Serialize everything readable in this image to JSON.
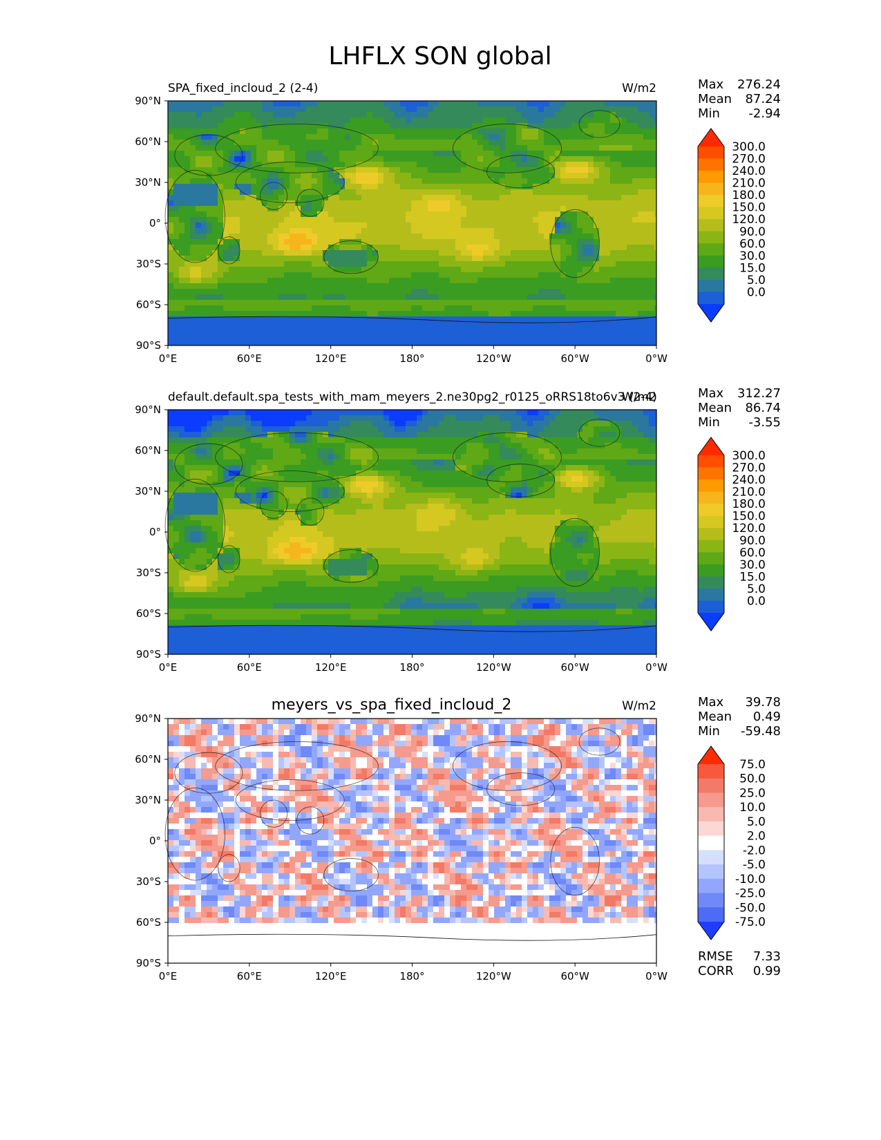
{
  "page_title": "LHFLX SON global",
  "chart_data": [
    {
      "type": "heatmap",
      "title": "SPA_fixed_incloud_2 (2-4)",
      "units": "W/m2",
      "x_ticks": [
        "0°E",
        "60°E",
        "120°E",
        "180°",
        "120°W",
        "60°W",
        "0°W"
      ],
      "y_ticks": [
        "90°N",
        "60°N",
        "30°N",
        "0°",
        "30°S",
        "60°S",
        "90°S"
      ],
      "xlim": [
        0,
        360
      ],
      "ylim": [
        -90,
        90
      ],
      "stats": [
        {
          "label": "Max",
          "value": "276.24"
        },
        {
          "label": "Mean",
          "value": "87.24"
        },
        {
          "label": "Min",
          "value": "-2.94"
        }
      ],
      "colorbar": {
        "levels": [
          "300.0",
          "270.0",
          "240.0",
          "210.0",
          "180.0",
          "150.0",
          "120.0",
          "90.0",
          "60.0",
          "30.0",
          "15.0",
          "5.0",
          "0.0"
        ],
        "colors": [
          "#ff2a00",
          "#ff4e00",
          "#ff7400",
          "#ff9a00",
          "#f7b51c",
          "#efcb2a",
          "#d4c821",
          "#b5bd1a",
          "#8ab514",
          "#5fa816",
          "#3b9c22",
          "#348a5a",
          "#2a78a0",
          "#1c5fd6",
          "#0a3dff"
        ]
      }
    },
    {
      "type": "heatmap",
      "title": "default.default.spa_tests_with_mam_meyers_2.ne30pg2_r0125_oRRS18to6v3 (2-4)",
      "units": "W/m2",
      "x_ticks": [
        "0°E",
        "60°E",
        "120°E",
        "180°",
        "120°W",
        "60°W",
        "0°W"
      ],
      "y_ticks": [
        "90°N",
        "60°N",
        "30°N",
        "0°",
        "30°S",
        "60°S",
        "90°S"
      ],
      "xlim": [
        0,
        360
      ],
      "ylim": [
        -90,
        90
      ],
      "stats": [
        {
          "label": "Max",
          "value": "312.27"
        },
        {
          "label": "Mean",
          "value": "86.74"
        },
        {
          "label": "Min",
          "value": "-3.55"
        }
      ],
      "colorbar": {
        "levels": [
          "300.0",
          "270.0",
          "240.0",
          "210.0",
          "180.0",
          "150.0",
          "120.0",
          "90.0",
          "60.0",
          "30.0",
          "15.0",
          "5.0",
          "0.0"
        ],
        "colors": [
          "#ff2a00",
          "#ff4e00",
          "#ff7400",
          "#ff9a00",
          "#f7b51c",
          "#efcb2a",
          "#d4c821",
          "#b5bd1a",
          "#8ab514",
          "#5fa816",
          "#3b9c22",
          "#348a5a",
          "#2a78a0",
          "#1c5fd6",
          "#0a3dff"
        ]
      }
    },
    {
      "type": "heatmap",
      "title": "meyers_vs_spa_fixed_incloud_2",
      "units": "W/m2",
      "x_ticks": [
        "0°E",
        "60°E",
        "120°E",
        "180°",
        "120°W",
        "60°W",
        "0°W"
      ],
      "y_ticks": [
        "90°N",
        "60°N",
        "30°N",
        "0°",
        "30°S",
        "60°S",
        "90°S"
      ],
      "xlim": [
        0,
        360
      ],
      "ylim": [
        -90,
        90
      ],
      "stats": [
        {
          "label": "Max",
          "value": "39.78"
        },
        {
          "label": "Mean",
          "value": "0.49"
        },
        {
          "label": "Min",
          "value": "-59.48"
        }
      ],
      "colorbar": {
        "levels": [
          "75.0",
          "50.0",
          "25.0",
          "10.0",
          "5.0",
          "2.0",
          "-2.0",
          "-5.0",
          "-10.0",
          "-25.0",
          "-50.0",
          "-75.0"
        ],
        "colors": [
          "#ff2a00",
          "#f8593e",
          "#f37a66",
          "#f59a8c",
          "#f8b9b0",
          "#fbd8d3",
          "#ffffff",
          "#d6dfff",
          "#b4c4ff",
          "#92a7fb",
          "#6f89f8",
          "#4d6bf5",
          "#1f3dff"
        ]
      },
      "metrics": [
        {
          "label": "RMSE",
          "value": "7.33"
        },
        {
          "label": "CORR",
          "value": "0.99"
        }
      ]
    }
  ]
}
